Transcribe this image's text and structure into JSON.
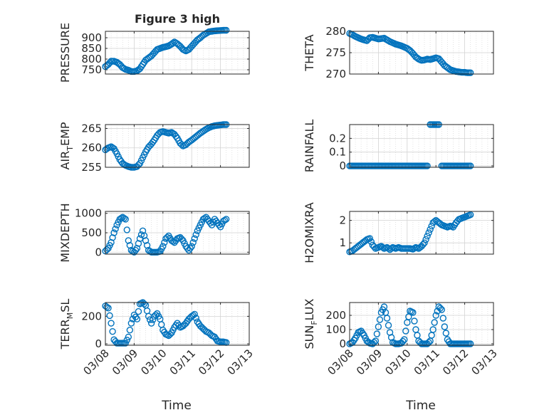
{
  "figure": {
    "xlabel_time": "Time",
    "x_ticks": [
      "03/08",
      "03/09",
      "03/10",
      "03/11",
      "03/12",
      "03/13"
    ],
    "marker_color": "#0072BD"
  },
  "chart_data": [
    {
      "type": "scatter",
      "title": "Figure 3 high",
      "ylabel": "PRESSURE",
      "ylim": [
        730,
        930
      ],
      "yticks": [
        750,
        800,
        850,
        900
      ],
      "grid": true,
      "xlim": [
        0,
        5
      ],
      "series": [
        {
          "x": [
            0.0,
            0.1,
            0.2,
            0.3,
            0.4,
            0.5,
            0.6,
            0.7,
            0.8,
            0.9,
            1.0,
            1.1,
            1.2,
            1.3,
            1.4,
            1.5,
            1.6,
            1.7,
            1.8,
            1.9,
            2.0,
            2.1,
            2.2,
            2.3,
            2.4,
            2.5,
            2.6,
            2.7,
            2.8,
            2.9,
            3.0,
            3.1,
            3.2,
            3.3,
            3.4,
            3.5,
            3.6,
            3.7,
            3.8,
            3.9,
            4.0,
            4.1,
            4.2
          ],
          "y": [
            765,
            775,
            790,
            790,
            785,
            775,
            760,
            752,
            748,
            742,
            742,
            745,
            755,
            775,
            795,
            805,
            815,
            830,
            845,
            850,
            855,
            858,
            862,
            870,
            880,
            872,
            860,
            845,
            838,
            845,
            860,
            875,
            890,
            900,
            912,
            920,
            928,
            930,
            932,
            933,
            934,
            935,
            935
          ]
        }
      ]
    },
    {
      "type": "scatter",
      "ylabel": "THETA",
      "ylim": [
        270,
        280
      ],
      "yticks": [
        270,
        275,
        280
      ],
      "grid": true,
      "xlim": [
        0,
        5
      ],
      "series": [
        {
          "x": [
            0.0,
            0.1,
            0.2,
            0.3,
            0.4,
            0.5,
            0.6,
            0.7,
            0.8,
            0.9,
            1.0,
            1.1,
            1.2,
            1.3,
            1.4,
            1.5,
            1.6,
            1.7,
            1.8,
            1.9,
            2.0,
            2.1,
            2.2,
            2.3,
            2.4,
            2.5,
            2.6,
            2.7,
            2.8,
            2.9,
            3.0,
            3.1,
            3.2,
            3.3,
            3.4,
            3.5,
            3.6,
            3.7,
            3.8,
            3.9,
            4.0,
            4.1,
            4.2
          ],
          "y": [
            279.5,
            279.2,
            278.8,
            278.5,
            278.2,
            278.0,
            277.8,
            278.5,
            278.6,
            278.4,
            278.2,
            278.3,
            278.4,
            278.0,
            277.6,
            277.3,
            277.0,
            276.8,
            276.6,
            276.3,
            276.0,
            275.5,
            274.8,
            274.0,
            273.5,
            273.2,
            273.3,
            273.5,
            273.4,
            273.6,
            273.8,
            273.6,
            272.8,
            272.0,
            271.5,
            271.0,
            270.8,
            270.6,
            270.5,
            270.4,
            270.4,
            270.3,
            270.3
          ]
        }
      ]
    },
    {
      "type": "scatter",
      "ylabel": "AIR_T_EMP",
      "ylim": [
        255,
        266
      ],
      "yticks": [
        255,
        260,
        265
      ],
      "grid": true,
      "xlim": [
        0,
        5
      ],
      "series": [
        {
          "x": [
            0.0,
            0.1,
            0.2,
            0.3,
            0.4,
            0.5,
            0.6,
            0.7,
            0.8,
            0.9,
            1.0,
            1.1,
            1.2,
            1.3,
            1.4,
            1.5,
            1.6,
            1.7,
            1.8,
            1.9,
            2.0,
            2.1,
            2.2,
            2.3,
            2.4,
            2.5,
            2.6,
            2.7,
            2.8,
            2.9,
            3.0,
            3.1,
            3.2,
            3.3,
            3.4,
            3.5,
            3.6,
            3.7,
            3.8,
            3.9,
            4.0,
            4.1,
            4.2
          ],
          "y": [
            259.5,
            260.0,
            260.3,
            259.8,
            258.5,
            257.0,
            256.0,
            255.5,
            255.2,
            255.0,
            255.0,
            255.2,
            256.0,
            257.5,
            259.0,
            260.2,
            261.0,
            262.0,
            263.2,
            264.0,
            264.2,
            264.0,
            263.8,
            264.0,
            263.5,
            262.5,
            261.2,
            260.5,
            260.8,
            261.5,
            262.0,
            262.6,
            263.2,
            263.8,
            264.3,
            264.8,
            265.2,
            265.5,
            265.7,
            265.8,
            265.9,
            266.0,
            266.0
          ]
        }
      ]
    },
    {
      "type": "scatter",
      "ylabel": "RAINFALL",
      "ylim": [
        -0.01,
        0.3
      ],
      "yticks": [
        0,
        0.1,
        0.2
      ],
      "grid": true,
      "xlim": [
        0,
        5
      ],
      "series": [
        {
          "x": [
            0.0,
            0.1,
            0.2,
            0.3,
            0.4,
            0.5,
            0.6,
            0.7,
            0.8,
            0.9,
            1.0,
            1.1,
            1.2,
            1.3,
            1.4,
            1.5,
            1.6,
            1.7,
            1.8,
            1.9,
            2.0,
            2.1,
            2.2,
            2.3,
            2.4,
            2.5,
            2.6,
            2.7,
            2.8,
            2.9,
            3.0,
            3.1,
            3.2,
            3.3,
            3.4,
            3.5,
            3.6,
            3.7,
            3.8,
            3.9,
            4.0,
            4.1,
            4.2
          ],
          "y": [
            0,
            0,
            0,
            0,
            0,
            0,
            0,
            0,
            0,
            0,
            0,
            0,
            0,
            0,
            0,
            0,
            0,
            0,
            0,
            0,
            0,
            0,
            0,
            0,
            0,
            0,
            0,
            0,
            0.3,
            0.3,
            0.3,
            0.3,
            0,
            0,
            0,
            0,
            0,
            0,
            0,
            0,
            0,
            0,
            0
          ]
        }
      ]
    },
    {
      "type": "scatter",
      "ylabel": "MIXDEPTH",
      "ylim": [
        -50,
        1050
      ],
      "yticks": [
        0,
        500,
        1000
      ],
      "grid": true,
      "xlim": [
        0,
        5
      ],
      "series": [
        {
          "x": [
            0.0,
            0.1,
            0.2,
            0.3,
            0.4,
            0.5,
            0.6,
            0.7,
            0.8,
            0.9,
            1.0,
            1.1,
            1.2,
            1.3,
            1.4,
            1.5,
            1.6,
            1.7,
            1.8,
            1.9,
            2.0,
            2.1,
            2.2,
            2.3,
            2.4,
            2.5,
            2.6,
            2.7,
            2.8,
            2.9,
            3.0,
            3.1,
            3.2,
            3.3,
            3.4,
            3.5,
            3.6,
            3.7,
            3.8,
            3.9,
            4.0,
            4.1,
            4.2
          ],
          "y": [
            30,
            100,
            250,
            500,
            700,
            850,
            900,
            850,
            300,
            50,
            0,
            100,
            350,
            550,
            300,
            50,
            0,
            0,
            0,
            20,
            150,
            350,
            420,
            300,
            250,
            350,
            380,
            300,
            150,
            50,
            150,
            350,
            550,
            700,
            850,
            900,
            800,
            700,
            850,
            750,
            650,
            800,
            850
          ]
        }
      ]
    },
    {
      "type": "scatter",
      "ylabel": "H2OMIXRA",
      "ylim": [
        0.5,
        2.4
      ],
      "yticks": [
        1,
        2
      ],
      "grid": true,
      "xlim": [
        0,
        5
      ],
      "series": [
        {
          "x": [
            0.0,
            0.1,
            0.2,
            0.3,
            0.4,
            0.5,
            0.6,
            0.7,
            0.8,
            0.9,
            1.0,
            1.1,
            1.2,
            1.3,
            1.4,
            1.5,
            1.6,
            1.7,
            1.8,
            1.9,
            2.0,
            2.1,
            2.2,
            2.3,
            2.4,
            2.5,
            2.6,
            2.7,
            2.8,
            2.9,
            3.0,
            3.1,
            3.2,
            3.3,
            3.4,
            3.5,
            3.6,
            3.7,
            3.8,
            3.9,
            4.0,
            4.1,
            4.2
          ],
          "y": [
            0.6,
            0.65,
            0.75,
            0.85,
            0.95,
            1.05,
            1.15,
            1.2,
            0.9,
            0.75,
            0.8,
            0.85,
            0.75,
            0.8,
            0.7,
            0.8,
            0.75,
            0.8,
            0.75,
            0.75,
            0.75,
            0.75,
            0.72,
            0.8,
            0.75,
            0.85,
            1.0,
            1.3,
            1.6,
            1.9,
            2.0,
            1.9,
            1.8,
            1.75,
            1.7,
            1.75,
            1.7,
            1.9,
            2.05,
            2.1,
            2.15,
            2.2,
            2.25
          ]
        }
      ]
    },
    {
      "type": "scatter",
      "ylabel": "TERR_M_SL",
      "ylim": [
        -10,
        300
      ],
      "yticks": [
        0,
        200
      ],
      "grid": true,
      "xlim": [
        0,
        5
      ],
      "series": [
        {
          "x": [
            0.0,
            0.1,
            0.2,
            0.3,
            0.4,
            0.5,
            0.6,
            0.7,
            0.8,
            0.9,
            1.0,
            1.1,
            1.2,
            1.3,
            1.4,
            1.5,
            1.6,
            1.7,
            1.8,
            1.9,
            2.0,
            2.1,
            2.2,
            2.3,
            2.4,
            2.5,
            2.6,
            2.7,
            2.8,
            2.9,
            3.0,
            3.1,
            3.2,
            3.3,
            3.4,
            3.5,
            3.6,
            3.7,
            3.8,
            3.9,
            4.0,
            4.1,
            4.2
          ],
          "y": [
            275,
            260,
            150,
            30,
            5,
            5,
            5,
            5,
            50,
            150,
            210,
            180,
            290,
            300,
            280,
            200,
            150,
            200,
            220,
            180,
            100,
            70,
            60,
            80,
            120,
            150,
            120,
            130,
            150,
            180,
            200,
            215,
            160,
            130,
            110,
            90,
            80,
            60,
            50,
            20,
            15,
            15,
            10
          ]
        }
      ]
    },
    {
      "type": "scatter",
      "ylabel": "SUN_F_LUX",
      "ylim": [
        -10,
        290
      ],
      "yticks": [
        0,
        100,
        200
      ],
      "grid": true,
      "xlim": [
        0,
        5
      ],
      "series": [
        {
          "x": [
            0.0,
            0.1,
            0.2,
            0.3,
            0.4,
            0.5,
            0.6,
            0.7,
            0.8,
            0.9,
            1.0,
            1.1,
            1.2,
            1.3,
            1.4,
            1.5,
            1.6,
            1.7,
            1.8,
            1.9,
            2.0,
            2.1,
            2.2,
            2.3,
            2.4,
            2.5,
            2.6,
            2.7,
            2.8,
            2.9,
            3.0,
            3.1,
            3.2,
            3.3,
            3.4,
            3.5,
            3.6,
            3.7,
            3.8,
            3.9,
            4.0,
            4.1,
            4.2
          ],
          "y": [
            0,
            10,
            40,
            80,
            90,
            60,
            20,
            5,
            0,
            20,
            120,
            220,
            260,
            180,
            80,
            10,
            0,
            0,
            5,
            30,
            150,
            230,
            220,
            100,
            20,
            0,
            0,
            0,
            20,
            100,
            200,
            260,
            240,
            120,
            30,
            0,
            0,
            0,
            0,
            0,
            0,
            0,
            0
          ]
        }
      ]
    }
  ]
}
